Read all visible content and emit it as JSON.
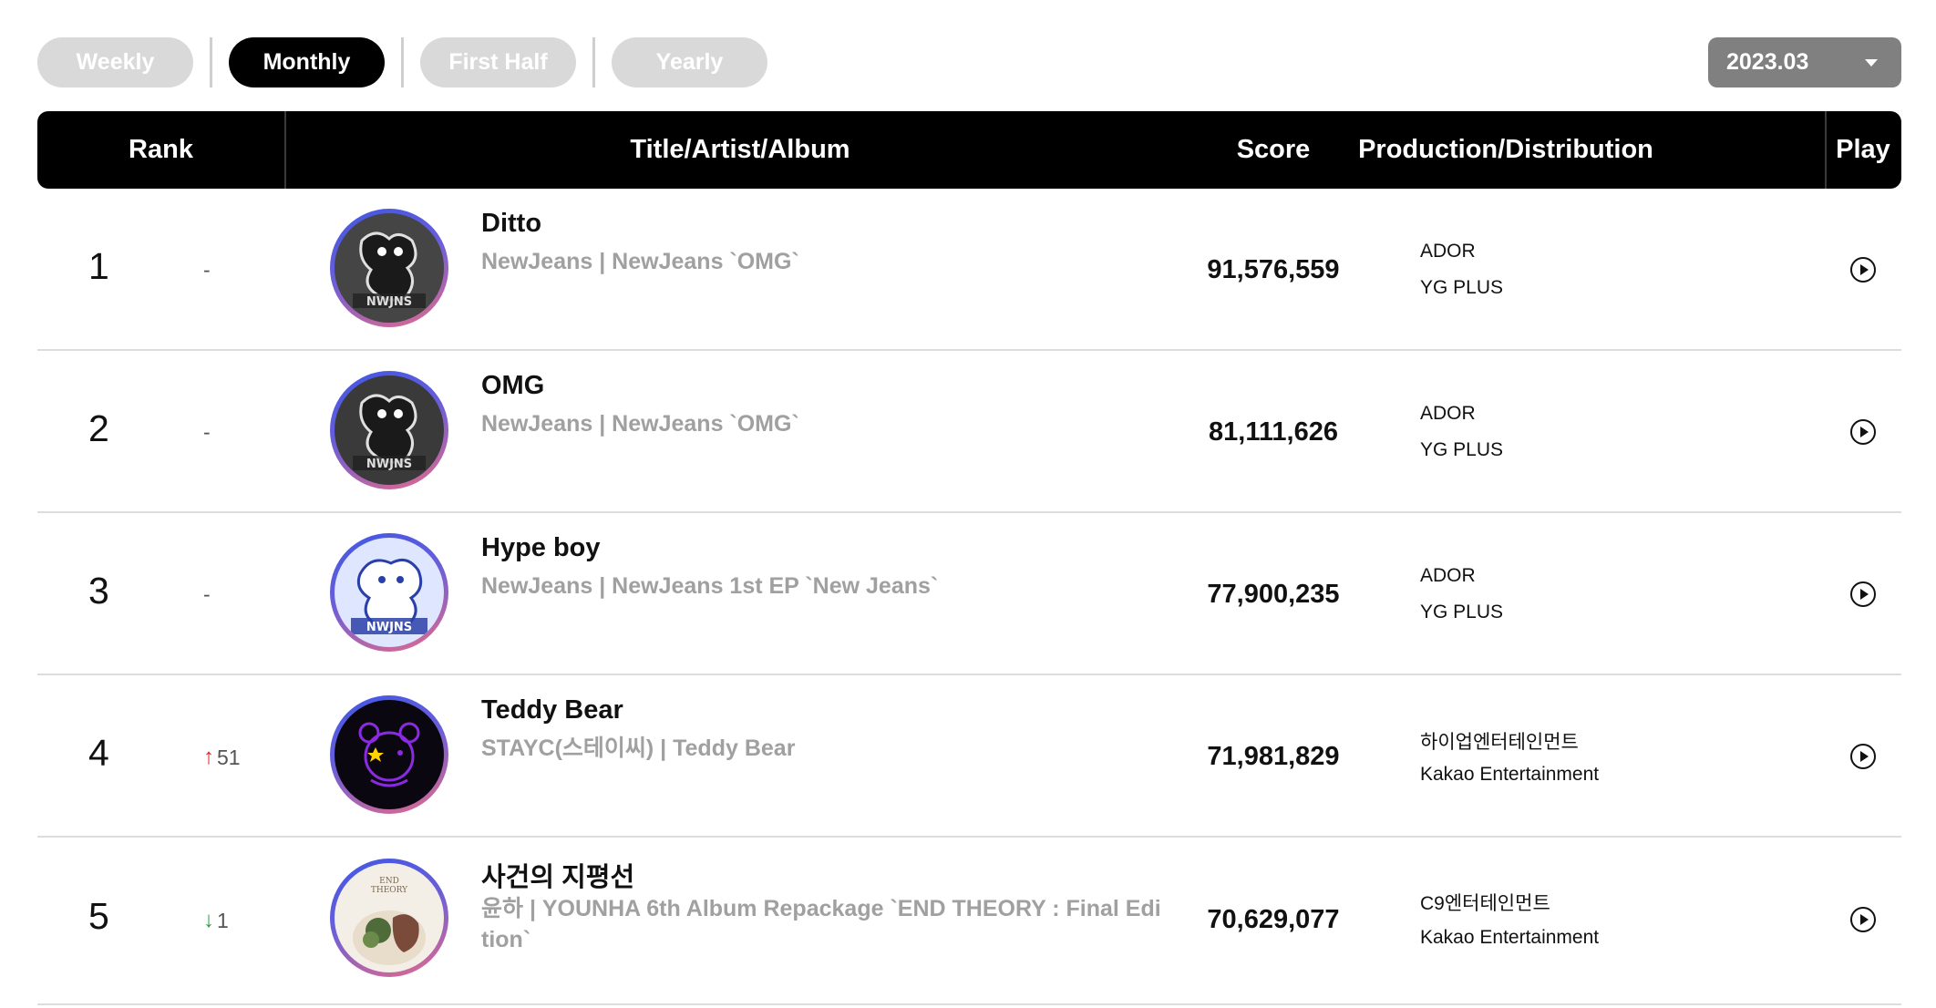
{
  "period_tabs": [
    {
      "label": "Weekly",
      "active": false
    },
    {
      "label": "Monthly",
      "active": true
    },
    {
      "label": "First Half",
      "active": false
    },
    {
      "label": "Yearly",
      "active": false
    }
  ],
  "date_select": {
    "value": "2023.03"
  },
  "table": {
    "headers": {
      "rank": "Rank",
      "title": "Title/Artist/Album",
      "score": "Score",
      "production": "Production/Distribution",
      "play": "Play"
    },
    "rows": [
      {
        "rank": "1",
        "change": "-",
        "change_dir": "none",
        "title": "Ditto",
        "subtitle": "NewJeans | NewJeans `OMG`",
        "score": "91,576,559",
        "production": "ADOR",
        "distribution": "YG PLUS",
        "cover": "newjeans-omg-cover"
      },
      {
        "rank": "2",
        "change": "-",
        "change_dir": "none",
        "title": "OMG",
        "subtitle": "NewJeans | NewJeans `OMG`",
        "score": "81,111,626",
        "production": "ADOR",
        "distribution": "YG PLUS",
        "cover": "newjeans-omg-cover"
      },
      {
        "rank": "3",
        "change": "-",
        "change_dir": "none",
        "title": "Hype boy",
        "subtitle": "NewJeans | NewJeans 1st EP `New Jeans`",
        "score": "77,900,235",
        "production": "ADOR",
        "distribution": "YG PLUS",
        "cover": "newjeans-1st-ep-cover"
      },
      {
        "rank": "4",
        "change": "51",
        "change_dir": "up",
        "title": "Teddy Bear",
        "subtitle": "STAYC(스테이씨) | Teddy Bear",
        "score": "71,981,829",
        "production": "하이업엔터테인먼트",
        "distribution": "Kakao Entertainment",
        "cover": "stayc-teddy-bear-cover"
      },
      {
        "rank": "5",
        "change": "1",
        "change_dir": "down",
        "title": "사건의 지평선",
        "subtitle": "윤하 | YOUNHA 6th Album Repackage `END THEORY : Final Edi tion`",
        "score": "70,629,077",
        "production": "C9엔터테인먼트",
        "distribution": "Kakao Entertainment",
        "cover": "end-theory-cover"
      }
    ]
  },
  "colors": {
    "active_tab": "#000000",
    "inactive_tab": "#d9d9d9",
    "header_bg": "#000000",
    "subtitle": "#a0a0a0",
    "up": "#e0262a",
    "down": "#2a9d3f",
    "date_select_bg": "#808080"
  },
  "icons": {
    "play": "play-circle-icon",
    "dropdown": "caret-down-icon",
    "rank_up": "arrow-up-icon",
    "rank_down": "arrow-down-icon"
  }
}
